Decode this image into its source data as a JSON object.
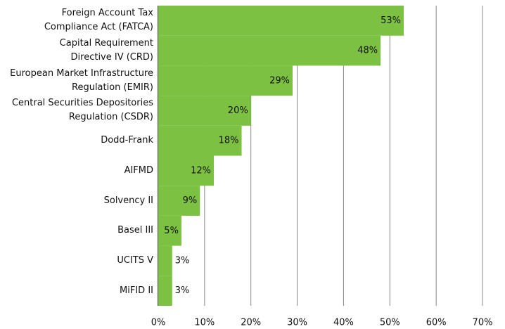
{
  "chart_data": {
    "type": "bar",
    "orientation": "horizontal",
    "categories": [
      "Foreign Account Tax\nCompliance Act (FATCA)",
      "Capital Requirement\nDirective IV (CRD)",
      "European Market Infrastructure\nRegulation (EMIR)",
      "Central Securities Depositories\nRegulation (CSDR)",
      "Dodd-Frank",
      "AIFMD",
      "Solvency II",
      "Basel III",
      "UCITS V",
      "MiFID II"
    ],
    "values": [
      53,
      48,
      29,
      20,
      18,
      12,
      9,
      5,
      3,
      3
    ],
    "value_labels": [
      "53%",
      "48%",
      "29%",
      "20%",
      "18%",
      "12%",
      "9%",
      "5%",
      "3%",
      "3%"
    ],
    "color": "#7dc142",
    "xlim": [
      0,
      70
    ],
    "xticks": [
      {
        "value": 0,
        "label": "0%"
      },
      {
        "value": 10,
        "label": "10%"
      },
      {
        "value": 20,
        "label": "20%"
      },
      {
        "value": 30,
        "label": "30%"
      },
      {
        "value": 40,
        "label": "40%"
      },
      {
        "value": 50,
        "label": "50%"
      },
      {
        "value": 60,
        "label": "60%"
      },
      {
        "value": 70,
        "label": "70%"
      }
    ],
    "grid": true
  }
}
